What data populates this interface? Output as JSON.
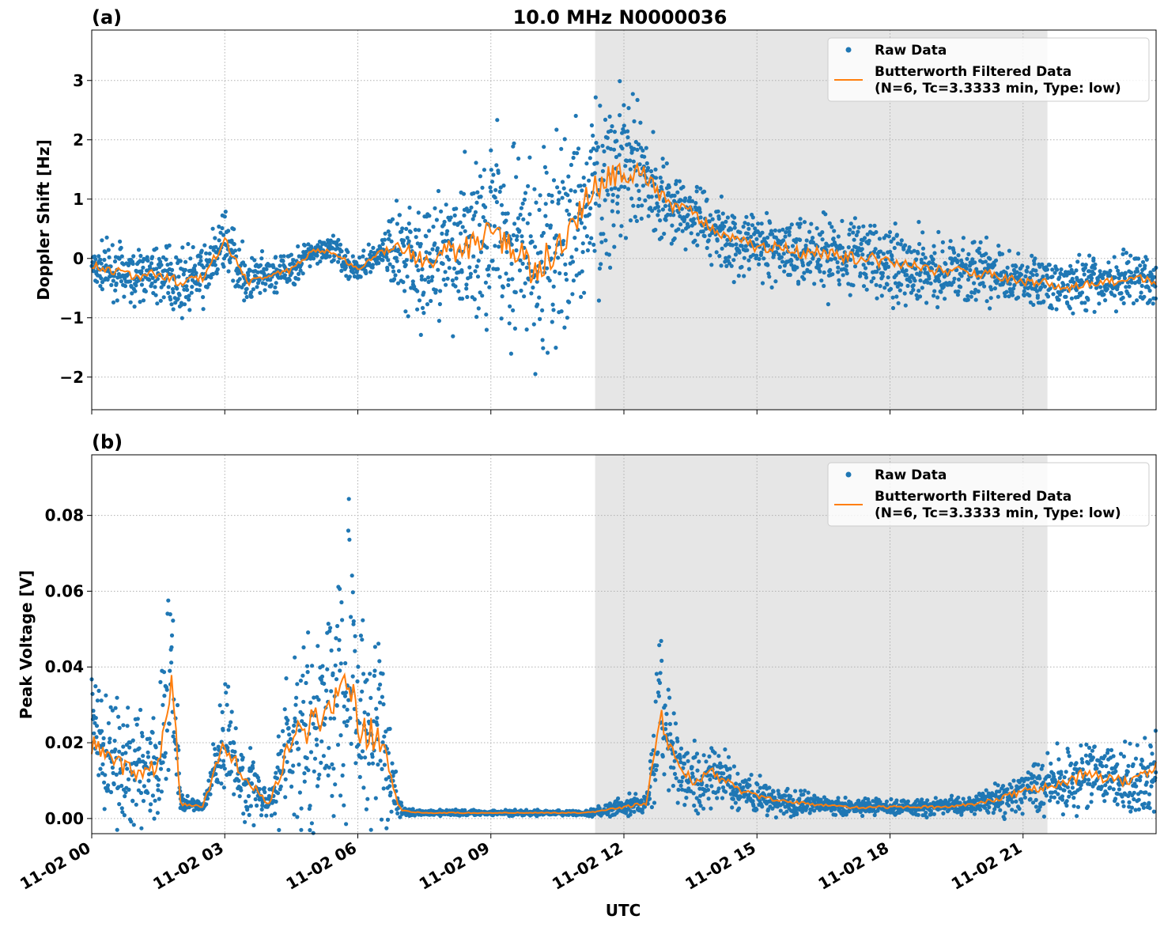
{
  "title": "10.0 MHz N0000036",
  "xlabel": "UTC",
  "x_ticks": [
    "11-02 00",
    "11-02 03",
    "11-02 06",
    "11-02 09",
    "11-02 12",
    "11-02 15",
    "11-02 18",
    "11-02 21"
  ],
  "colors": {
    "raw": "#1f77b4",
    "filtered": "#ff7f0e",
    "shade": "#e6e6e6",
    "grid": "#b0b0b0"
  },
  "shaded_region_hours": [
    11.35,
    21.55
  ],
  "legend": {
    "raw": "Raw Data",
    "filtered_line1": "Butterworth Filtered Data",
    "filtered_line2": "(N=6, Tc=3.3333 min, Type: low)"
  },
  "chart_data": [
    {
      "type": "scatter",
      "panel": "(a)",
      "ylabel": "Doppler Shift [Hz]",
      "y_ticks": [
        "3",
        "2",
        "1",
        "0",
        "−1",
        "−2"
      ],
      "y_tick_values": [
        3,
        2,
        1,
        0,
        -1,
        -2
      ],
      "ylim": [
        -2.55,
        3.85
      ],
      "xlim_hours": [
        0,
        24
      ],
      "legend_position": "top-right",
      "grid": true,
      "x_hours": [
        0,
        0.5,
        1,
        1.5,
        2,
        2.5,
        3,
        3.5,
        4,
        4.5,
        5,
        5.5,
        6,
        6.5,
        7,
        7.5,
        8,
        8.5,
        9,
        9.5,
        10,
        10.5,
        11,
        11.5,
        12,
        12.5,
        13,
        13.5,
        14,
        14.5,
        15,
        15.5,
        16,
        16.5,
        17,
        17.5,
        18,
        18.5,
        19,
        19.5,
        20,
        20.5,
        21,
        21.5,
        22,
        22.5,
        23,
        23.5,
        24
      ],
      "filtered": [
        -0.1,
        -0.2,
        -0.3,
        -0.25,
        -0.4,
        -0.3,
        0.3,
        -0.4,
        -0.3,
        -0.2,
        0.15,
        0.1,
        -0.2,
        0.1,
        0.2,
        -0.1,
        0.1,
        0.2,
        0.5,
        0.2,
        -0.2,
        0.2,
        0.8,
        1.3,
        1.5,
        1.4,
        0.9,
        0.8,
        0.5,
        0.3,
        0.2,
        0.2,
        0.1,
        0.1,
        0.0,
        0.0,
        -0.1,
        -0.1,
        -0.2,
        -0.2,
        -0.25,
        -0.3,
        -0.4,
        -0.4,
        -0.5,
        -0.4,
        -0.4,
        -0.3,
        -0.4
      ],
      "raw_spread": [
        0.25,
        0.3,
        0.3,
        0.3,
        0.35,
        0.35,
        0.3,
        0.3,
        0.25,
        0.2,
        0.15,
        0.2,
        0.15,
        0.15,
        0.6,
        0.7,
        0.8,
        0.9,
        1.1,
        1.2,
        1.2,
        1.1,
        1.1,
        1.0,
        0.9,
        0.6,
        0.5,
        0.4,
        0.4,
        0.4,
        0.4,
        0.4,
        0.4,
        0.45,
        0.45,
        0.45,
        0.45,
        0.45,
        0.4,
        0.35,
        0.35,
        0.3,
        0.3,
        0.3,
        0.3,
        0.3,
        0.3,
        0.3,
        0.3
      ]
    },
    {
      "type": "scatter",
      "panel": "(b)",
      "ylabel": "Peak Voltage [V]",
      "y_ticks": [
        "0.08",
        "0.06",
        "0.04",
        "0.02",
        "0.00"
      ],
      "y_tick_values": [
        0.08,
        0.06,
        0.04,
        0.02,
        0.0
      ],
      "ylim": [
        -0.004,
        0.096
      ],
      "xlim_hours": [
        0,
        24
      ],
      "legend_position": "top-right",
      "grid": true,
      "x_hours": [
        0,
        0.5,
        1,
        1.5,
        1.8,
        2,
        2.5,
        3,
        3.5,
        4,
        4.5,
        5,
        5.5,
        5.8,
        6,
        6.5,
        6.9,
        7,
        7.5,
        8,
        9,
        10,
        11,
        11.5,
        12,
        12.5,
        12.8,
        13,
        13.5,
        14,
        14.5,
        15,
        16,
        17,
        18,
        19,
        20,
        21,
        21.5,
        22,
        22.5,
        23,
        23.5,
        24
      ],
      "filtered": [
        0.02,
        0.015,
        0.012,
        0.014,
        0.038,
        0.004,
        0.003,
        0.02,
        0.01,
        0.004,
        0.02,
        0.025,
        0.03,
        0.04,
        0.025,
        0.02,
        0.004,
        0.002,
        0.0015,
        0.0015,
        0.0015,
        0.0015,
        0.0015,
        0.002,
        0.003,
        0.004,
        0.028,
        0.02,
        0.01,
        0.012,
        0.008,
        0.006,
        0.004,
        0.003,
        0.003,
        0.003,
        0.004,
        0.007,
        0.008,
        0.01,
        0.012,
        0.01,
        0.01,
        0.013
      ],
      "raw_spread": [
        0.012,
        0.01,
        0.01,
        0.009,
        0.02,
        0.002,
        0.001,
        0.01,
        0.008,
        0.002,
        0.015,
        0.02,
        0.02,
        0.025,
        0.02,
        0.018,
        0.003,
        0.0008,
        0.0005,
        0.0005,
        0.0005,
        0.0005,
        0.0005,
        0.001,
        0.002,
        0.002,
        0.015,
        0.008,
        0.006,
        0.006,
        0.004,
        0.003,
        0.002,
        0.0015,
        0.0015,
        0.0015,
        0.002,
        0.004,
        0.005,
        0.006,
        0.007,
        0.006,
        0.006,
        0.008
      ]
    }
  ]
}
